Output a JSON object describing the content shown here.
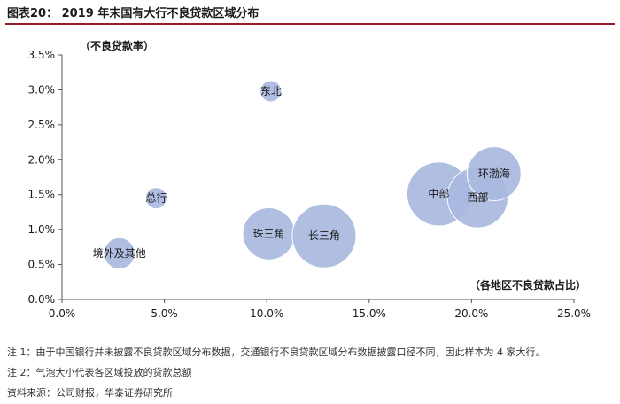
{
  "header": {
    "title": "图表20：  2019 年末国有大行不良贷款区域分布"
  },
  "chart_data": {
    "type": "scatter",
    "subtype": "bubble",
    "ylabel": "（不良贷款率）",
    "xlabel": "（各地区不良贷款占比）",
    "xlim": [
      0,
      25
    ],
    "ylim": [
      0,
      3.5
    ],
    "x_ticks": [
      "0.0%",
      "5.0%",
      "10.0%",
      "15.0%",
      "20.0%",
      "25.0%"
    ],
    "y_ticks": [
      "0.0%",
      "0.5%",
      "1.0%",
      "1.5%",
      "2.0%",
      "2.5%",
      "3.0%",
      "3.5%"
    ],
    "grid": false,
    "bubble_color": "#a9b8e0",
    "points": [
      {
        "label": "东北",
        "x": 10.2,
        "y": 2.98,
        "size": 2
      },
      {
        "label": "总行",
        "x": 4.6,
        "y": 1.45,
        "size": 1.5
      },
      {
        "label": "境外及其他",
        "x": 2.8,
        "y": 0.66,
        "size": 5
      },
      {
        "label": "珠三角",
        "x": 10.1,
        "y": 0.94,
        "size": 14
      },
      {
        "label": "长三角",
        "x": 12.8,
        "y": 0.91,
        "size": 21
      },
      {
        "label": "中部",
        "x": 18.4,
        "y": 1.51,
        "size": 21
      },
      {
        "label": "西部",
        "x": 20.3,
        "y": 1.46,
        "size": 19
      },
      {
        "label": "环渤海",
        "x": 21.1,
        "y": 1.8,
        "size": 15
      }
    ]
  },
  "footer": {
    "note1": "注 1：由于中国银行并未披露不良贷款区域分布数据，交通银行不良贷款区域分布数据披露口径不同，因此样本为 4 家大行。",
    "note2": "注 2：气泡大小代表各区域投放的贷款总额",
    "source": "资料来源：公司财报，华泰证券研究所"
  }
}
